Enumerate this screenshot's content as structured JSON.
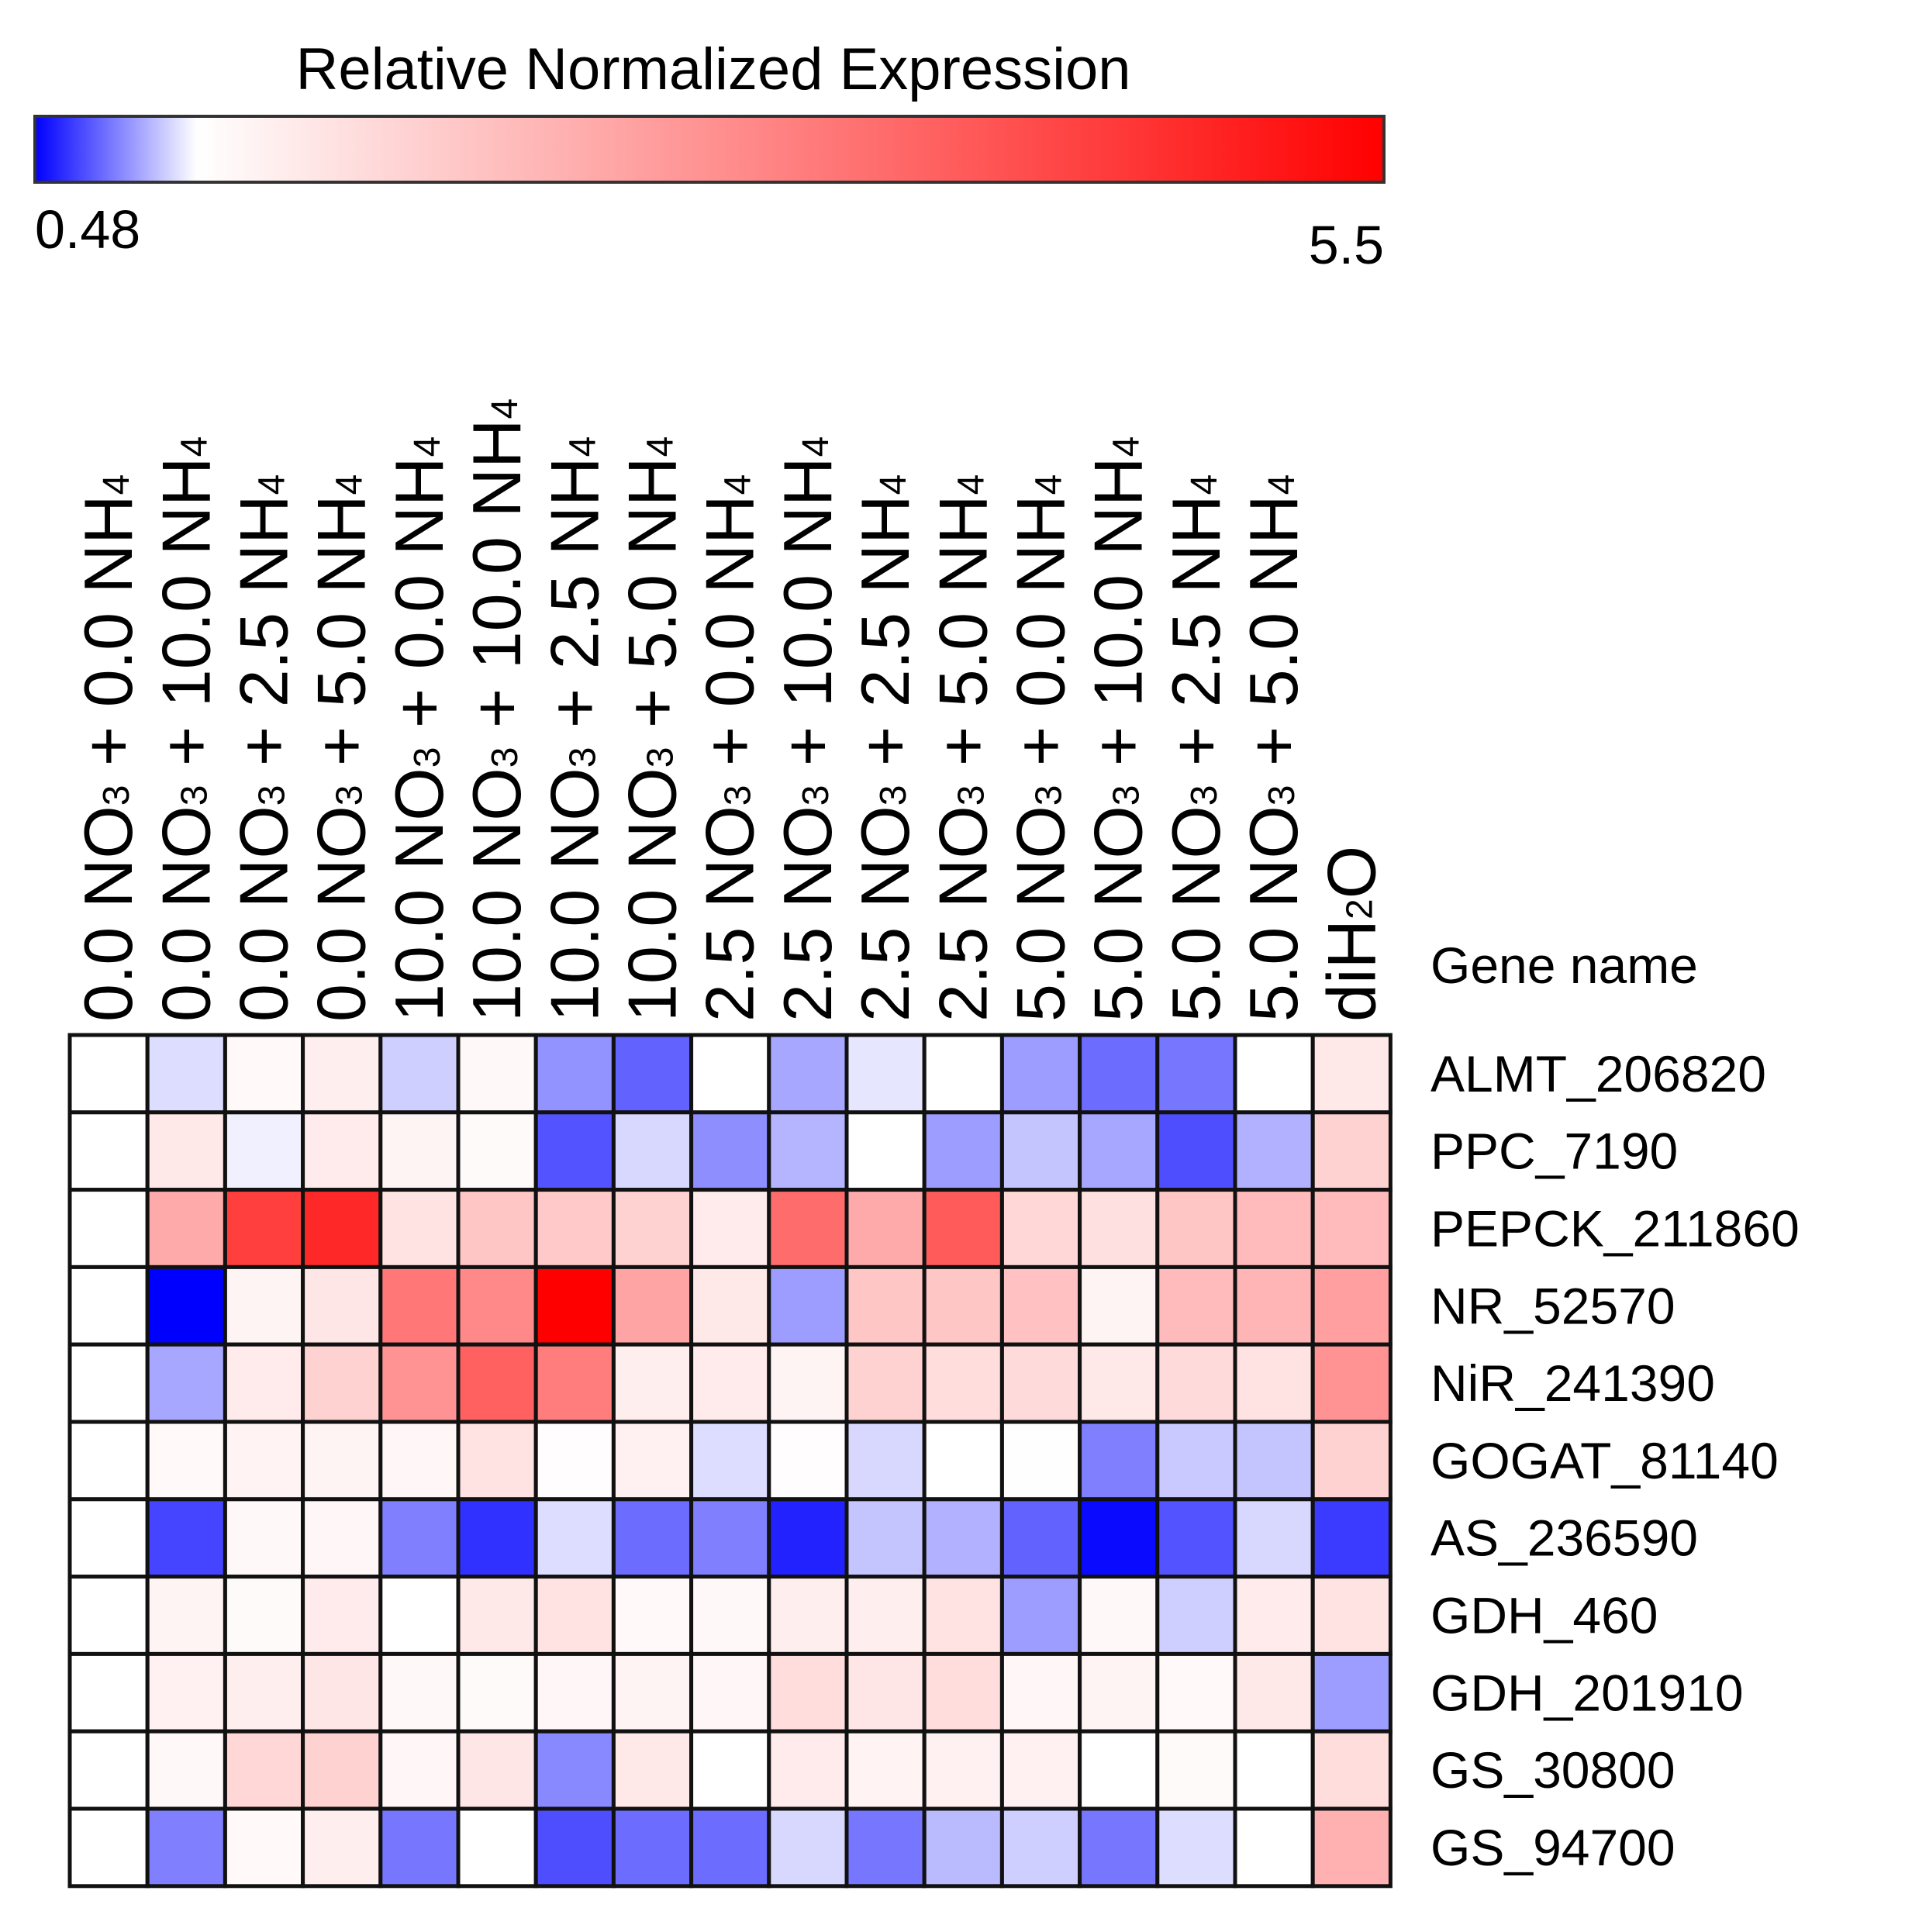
{
  "chart_data": {
    "type": "heatmap",
    "colorbar": {
      "title": "Relative Normalized Expression",
      "min_label": "0.48",
      "max_label": "5.5",
      "min": 0.48,
      "max": 5.5,
      "low_color": "#0000ff",
      "mid_color": "#ffffff",
      "high_color": "#ff0000",
      "mid_value": 1.0
    },
    "row_header": "Gene name",
    "columns": [
      {
        "label": "0.0 NO3 + 0.0 NH4",
        "parts": [
          "0.0 NO",
          "3",
          " + 0.0 NH",
          "4"
        ]
      },
      {
        "label": "0.0 NO3 + 10.0 NH4",
        "parts": [
          "0.0 NO",
          "3",
          " + 10.0 NH",
          "4"
        ]
      },
      {
        "label": "0.0 NO3 + 2.5 NH4",
        "parts": [
          "0.0 NO",
          "3",
          " + 2.5 NH",
          "4"
        ]
      },
      {
        "label": "0.0 NO3 + 5.0 NH4",
        "parts": [
          "0.0 NO",
          "3",
          " + 5.0 NH",
          "4"
        ]
      },
      {
        "label": "10.0 NO3 + 0.0 NH4",
        "parts": [
          "10.0 NO",
          "3",
          " + 0.0 NH",
          "4"
        ]
      },
      {
        "label": "10.0 NO3 + 10.0 NH4",
        "parts": [
          "10.0 NO",
          "3",
          " + 10.0 NH",
          "4"
        ]
      },
      {
        "label": "10.0 NO3 + 2.5 NH4",
        "parts": [
          "10.0 NO",
          "3",
          " + 2.5 NH",
          "4"
        ]
      },
      {
        "label": "10.0 NO3 + 5.0 NH4",
        "parts": [
          "10.0 NO",
          "3",
          " + 5.0 NH",
          "4"
        ]
      },
      {
        "label": "2.5 NO3 + 0.0 NH4",
        "parts": [
          "2.5 NO",
          "3",
          " + 0.0 NH",
          "4"
        ]
      },
      {
        "label": "2.5 NO3 + 10.0 NH4",
        "parts": [
          "2.5 NO",
          "3",
          " + 10.0 NH",
          "4"
        ]
      },
      {
        "label": "2.5 NO3 + 2.5 NH4",
        "parts": [
          "2.5 NO",
          "3",
          " + 2.5 NH",
          "4"
        ]
      },
      {
        "label": "2.5 NO3 + 5.0 NH4",
        "parts": [
          "2.5 NO",
          "3",
          " + 5.0 NH",
          "4"
        ]
      },
      {
        "label": "5.0 NO3 + 0.0 NH4",
        "parts": [
          "5.0 NO",
          "3",
          " + 0.0 NH",
          "4"
        ]
      },
      {
        "label": "5.0 NO3 + 10.0 NH4",
        "parts": [
          "5.0 NO",
          "3",
          " + 10.0 NH",
          "4"
        ]
      },
      {
        "label": "5.0 NO3 + 2.5 NH4",
        "parts": [
          "5.0 NO",
          "3",
          " + 2.5 NH",
          "4"
        ]
      },
      {
        "label": "5.0 NO3 + 5.0 NH4",
        "parts": [
          "5.0 NO",
          "3",
          " + 5.0 NH",
          "4"
        ]
      },
      {
        "label": "diH2O",
        "parts": [
          "diH",
          "2",
          "O",
          ""
        ]
      }
    ],
    "rows": [
      "ALMT_206820",
      "PPC_7190",
      "PEPCK_211860",
      "NR_52570",
      "NiR_241390",
      "GOGAT_81140",
      "AS_236590",
      "GDH_460",
      "GDH_201910",
      "GS_30800",
      "GS_94700"
    ],
    "values": [
      [
        1.0,
        0.93,
        1.1,
        1.3,
        0.9,
        1.12,
        0.78,
        0.68,
        1.0,
        0.82,
        0.95,
        1.0,
        0.8,
        0.7,
        0.72,
        1.0,
        1.4
      ],
      [
        1.0,
        1.4,
        0.97,
        1.35,
        1.2,
        1.08,
        0.65,
        0.92,
        0.77,
        0.85,
        1.0,
        0.8,
        0.88,
        0.82,
        0.64,
        0.84,
        1.8
      ],
      [
        1.0,
        2.5,
        4.4,
        4.8,
        1.5,
        2.0,
        1.95,
        1.8,
        1.35,
        3.6,
        2.5,
        3.9,
        1.7,
        1.55,
        2.0,
        2.2,
        2.2
      ],
      [
        1.0,
        0.48,
        1.2,
        1.45,
        3.4,
        3.1,
        5.5,
        2.6,
        1.4,
        0.8,
        2.0,
        2.0,
        2.1,
        1.2,
        2.2,
        2.3,
        2.7
      ],
      [
        1.0,
        0.82,
        1.35,
        1.8,
        2.9,
        3.8,
        3.3,
        1.3,
        1.35,
        1.2,
        1.8,
        1.6,
        1.65,
        1.4,
        1.65,
        1.5,
        2.9
      ],
      [
        1.0,
        1.1,
        1.22,
        1.2,
        1.15,
        1.5,
        1.03,
        1.25,
        0.93,
        1.04,
        0.92,
        1.0,
        1.02,
        0.74,
        0.89,
        0.88,
        1.8
      ],
      [
        1.0,
        0.62,
        1.12,
        1.15,
        0.74,
        0.58,
        0.93,
        0.7,
        0.74,
        0.55,
        0.88,
        0.84,
        0.68,
        0.5,
        0.65,
        0.92,
        0.6
      ],
      [
        1.0,
        1.2,
        1.08,
        1.35,
        1.0,
        1.4,
        1.5,
        1.1,
        1.12,
        1.3,
        1.3,
        1.5,
        0.8,
        1.12,
        0.9,
        1.35,
        1.5
      ],
      [
        1.0,
        1.25,
        1.3,
        1.45,
        1.12,
        1.08,
        1.15,
        1.2,
        1.15,
        1.6,
        1.45,
        1.6,
        1.15,
        1.2,
        1.1,
        1.4,
        0.8
      ],
      [
        1.0,
        1.12,
        1.7,
        1.8,
        1.15,
        1.45,
        0.76,
        1.4,
        1.0,
        1.35,
        1.22,
        1.25,
        1.25,
        1.0,
        1.08,
        1.0,
        1.6
      ],
      [
        1.0,
        0.74,
        1.1,
        1.3,
        0.72,
        1.0,
        0.64,
        0.7,
        0.7,
        0.92,
        0.72,
        0.86,
        0.9,
        0.72,
        0.93,
        1.0,
        2.4
      ]
    ]
  }
}
